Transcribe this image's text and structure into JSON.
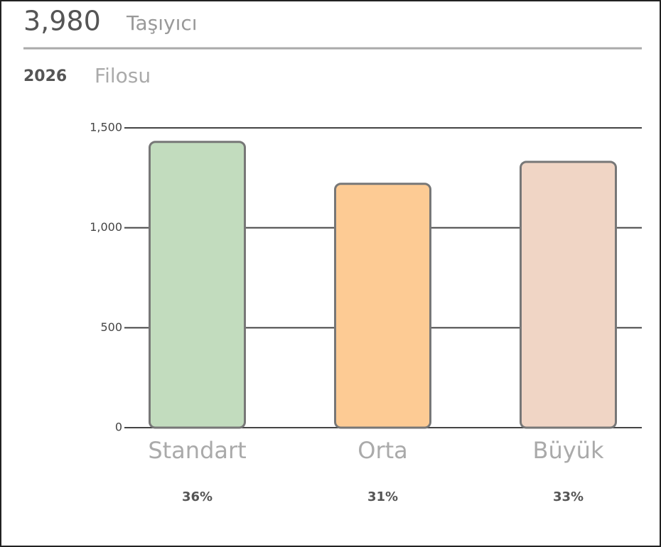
{
  "header": {
    "total": "3,980",
    "total_label": "Taşıyıcı",
    "year": "2026",
    "subtitle": "Filosu"
  },
  "chart_data": {
    "type": "bar",
    "categories": [
      "Standart",
      "Orta",
      "Büyük"
    ],
    "values": [
      1430,
      1220,
      1330
    ],
    "colors": [
      "#c2dcbe",
      "#fdcb94",
      "#f0d5c5"
    ],
    "share_labels": [
      "36%",
      "31%",
      "33%"
    ],
    "ylim": [
      0,
      1500
    ],
    "yticks": [
      {
        "value": 0,
        "label": "0"
      },
      {
        "value": 500,
        "label": "500"
      },
      {
        "value": 1000,
        "label": "1,000"
      },
      {
        "value": 1500,
        "label": "1,500"
      }
    ],
    "grid": true
  }
}
